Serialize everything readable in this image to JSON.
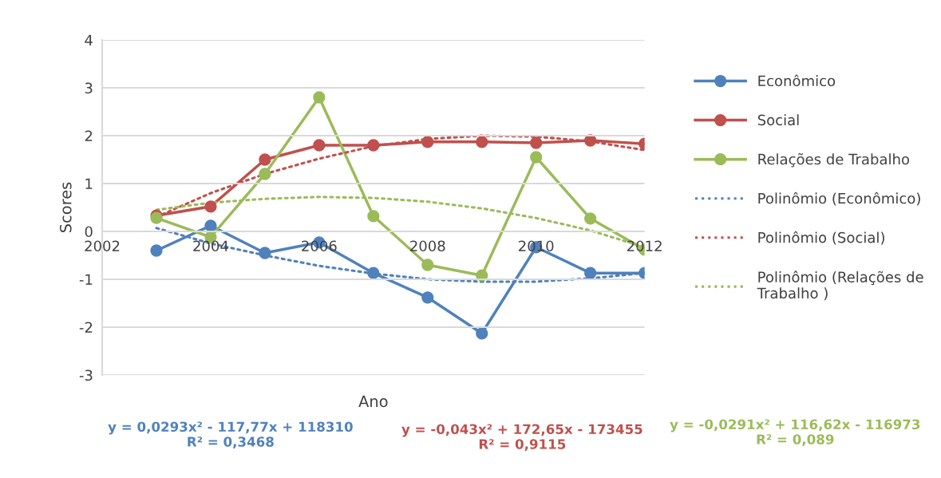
{
  "chart_data": {
    "type": "line",
    "xlabel": "Ano",
    "ylabel": "Scores",
    "x": [
      2003,
      2004,
      2005,
      2006,
      2007,
      2008,
      2009,
      2010,
      2011,
      2012
    ],
    "xlim": [
      2002,
      2012
    ],
    "xticks": [
      2002,
      2004,
      2006,
      2008,
      2010,
      2012
    ],
    "ylim": [
      -3,
      4
    ],
    "yticks": [
      -3,
      -2,
      -1,
      0,
      1,
      2,
      3,
      4
    ],
    "grid": "y",
    "legend": "right",
    "marker": "circle",
    "line_style": "solid",
    "series": [
      {
        "name": "Econômico",
        "color": "#4f81bd",
        "values": [
          -0.4,
          0.12,
          -0.45,
          -0.23,
          -0.87,
          -1.38,
          -2.13,
          -0.33,
          -0.87,
          -0.87
        ]
      },
      {
        "name": "Social",
        "color": "#c0504d",
        "values": [
          0.33,
          0.52,
          1.5,
          1.8,
          1.8,
          1.87,
          1.87,
          1.85,
          1.9,
          1.83
        ]
      },
      {
        "name": "Relações de Trabalho",
        "color": "#9bbb59",
        "values": [
          0.28,
          -0.12,
          1.2,
          2.8,
          0.32,
          -0.7,
          -0.92,
          1.55,
          0.27,
          -0.38
        ]
      },
      {
        "name": "Polinômio (Econômico)",
        "color": "#4f81bd",
        "marker": "none",
        "line_style": "dotted",
        "x": [
          2003,
          2004,
          2005,
          2006,
          2007,
          2008,
          2009,
          2010,
          2011,
          2012
        ],
        "values": [
          0.07,
          -0.25,
          -0.5,
          -0.72,
          -0.88,
          -1.0,
          -1.05,
          -1.05,
          -0.98,
          -0.87
        ]
      },
      {
        "name": "Polinômio (Social)",
        "color": "#c0504d",
        "marker": "none",
        "line_style": "dotted",
        "x": [
          2003,
          2004,
          2005,
          2006,
          2007,
          2008,
          2009,
          2010,
          2011,
          2012
        ],
        "values": [
          0.3,
          0.8,
          1.2,
          1.52,
          1.78,
          1.93,
          2.0,
          1.98,
          1.88,
          1.7
        ]
      },
      {
        "name": "Polinômio (Relações de Trabalho )",
        "color": "#9bbb59",
        "marker": "none",
        "line_style": "dotted",
        "x": [
          2003,
          2004,
          2005,
          2006,
          2007,
          2008,
          2009,
          2010,
          2011,
          2012
        ],
        "values": [
          0.45,
          0.6,
          0.68,
          0.72,
          0.7,
          0.62,
          0.48,
          0.28,
          0.02,
          -0.33
        ]
      }
    ],
    "annotations": [
      "y = 0,0293x² - 117,77x + 118310\nR² = 0,3468",
      "y = -0,043x² + 172,65x - 173455\nR² = 0,9115",
      "y = -0,0291x² + 116,62x - 116973\nR² = 0,089"
    ]
  }
}
